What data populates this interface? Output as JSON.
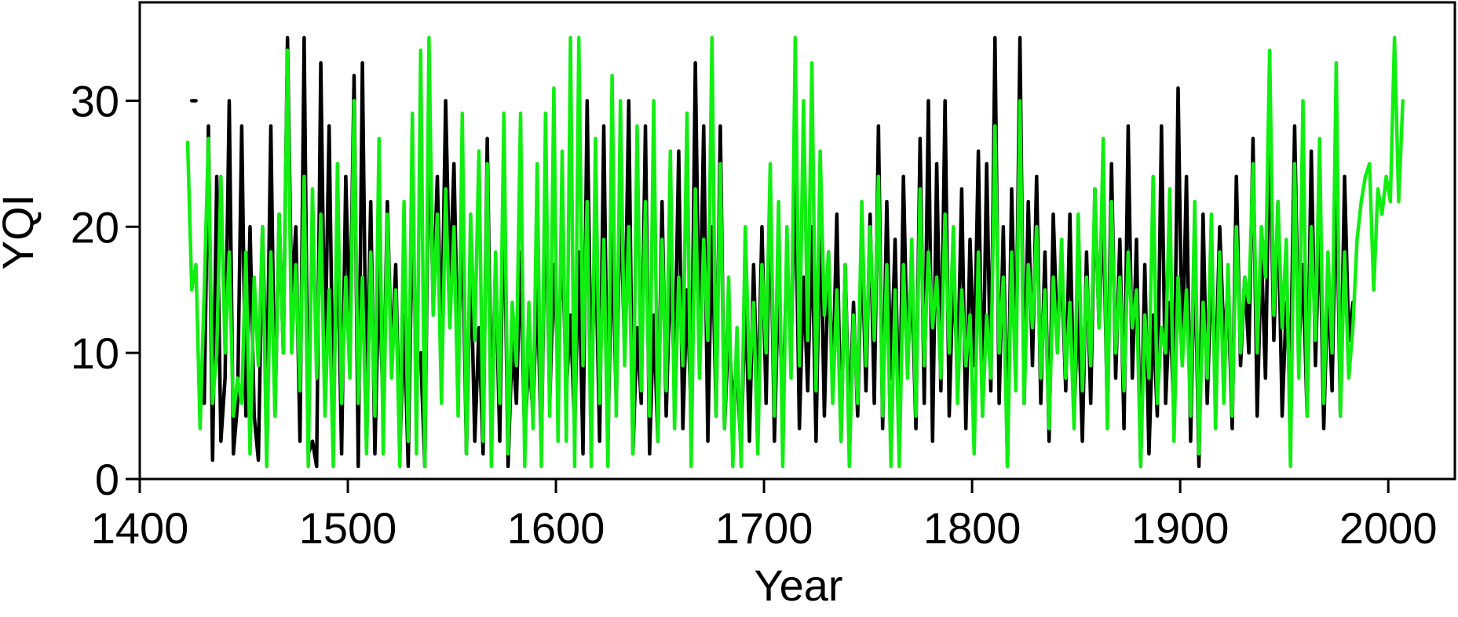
{
  "chart_data": {
    "type": "line",
    "x_label": "Year",
    "y_label": "YQI",
    "xlim": [
      1400,
      2032
    ],
    "xticks": [
      1400,
      1500,
      1600,
      1700,
      1800,
      1900,
      2000
    ],
    "ylim": [
      0,
      37.8
    ],
    "yticks": [
      0,
      10,
      20,
      30
    ],
    "x": [
      1423,
      1425,
      1427,
      1429,
      1431,
      1433,
      1435,
      1437,
      1439,
      1441,
      1443,
      1445,
      1447,
      1449,
      1451,
      1453,
      1455,
      1457,
      1459,
      1461,
      1463,
      1465,
      1467,
      1469,
      1471,
      1473,
      1475,
      1477,
      1479,
      1481,
      1483,
      1485,
      1487,
      1489,
      1491,
      1493,
      1495,
      1497,
      1499,
      1501,
      1503,
      1505,
      1507,
      1509,
      1511,
      1513,
      1515,
      1517,
      1519,
      1521,
      1523,
      1525,
      1527,
      1529,
      1531,
      1533,
      1535,
      1537,
      1539,
      1541,
      1543,
      1545,
      1547,
      1549,
      1551,
      1553,
      1555,
      1557,
      1559,
      1561,
      1563,
      1565,
      1567,
      1569,
      1571,
      1573,
      1575,
      1577,
      1579,
      1581,
      1583,
      1585,
      1587,
      1589,
      1591,
      1593,
      1595,
      1597,
      1599,
      1601,
      1603,
      1605,
      1607,
      1609,
      1611,
      1613,
      1615,
      1617,
      1619,
      1621,
      1623,
      1625,
      1627,
      1629,
      1631,
      1633,
      1635,
      1637,
      1639,
      1641,
      1643,
      1645,
      1647,
      1649,
      1651,
      1653,
      1655,
      1657,
      1659,
      1661,
      1663,
      1665,
      1667,
      1669,
      1671,
      1673,
      1675,
      1677,
      1679,
      1681,
      1683,
      1685,
      1687,
      1689,
      1691,
      1693,
      1695,
      1697,
      1699,
      1701,
      1703,
      1705,
      1707,
      1709,
      1711,
      1713,
      1715,
      1717,
      1719,
      1721,
      1723,
      1725,
      1727,
      1729,
      1731,
      1733,
      1735,
      1737,
      1739,
      1741,
      1743,
      1745,
      1747,
      1749,
      1751,
      1753,
      1755,
      1757,
      1759,
      1761,
      1763,
      1765,
      1767,
      1769,
      1771,
      1773,
      1775,
      1777,
      1779,
      1781,
      1783,
      1785,
      1787,
      1789,
      1791,
      1793,
      1795,
      1797,
      1799,
      1801,
      1803,
      1805,
      1807,
      1809,
      1811,
      1813,
      1815,
      1817,
      1819,
      1821,
      1823,
      1825,
      1827,
      1829,
      1831,
      1833,
      1835,
      1837,
      1839,
      1841,
      1843,
      1845,
      1847,
      1849,
      1851,
      1853,
      1855,
      1857,
      1859,
      1861,
      1863,
      1865,
      1867,
      1869,
      1871,
      1873,
      1875,
      1877,
      1879,
      1881,
      1883,
      1885,
      1887,
      1889,
      1891,
      1893,
      1895,
      1897,
      1899,
      1901,
      1903,
      1905,
      1907,
      1909,
      1911,
      1913,
      1915,
      1917,
      1919,
      1921,
      1923,
      1925,
      1927,
      1929,
      1931,
      1933,
      1935,
      1937,
      1939,
      1941,
      1943,
      1945,
      1947,
      1949,
      1951,
      1953,
      1955,
      1957,
      1959,
      1961,
      1963,
      1965,
      1967,
      1969,
      1971,
      1973,
      1975,
      1977,
      1979,
      1981,
      1983,
      1985,
      1987,
      1989,
      1991,
      1993,
      1995,
      1997,
      1999,
      2001,
      2003,
      2005,
      2007
    ],
    "series": [
      {
        "color": "#000000",
        "values": [
          null,
          30,
          30,
          null,
          6,
          28,
          1.5,
          24,
          3,
          8,
          30,
          2,
          6,
          28,
          5,
          20,
          5,
          1.5,
          20,
          6,
          28,
          5,
          21,
          10,
          35,
          14,
          20,
          3,
          35,
          2,
          3,
          1,
          33,
          9,
          28,
          5,
          20,
          2,
          24,
          11,
          32,
          1,
          33,
          5,
          22,
          2,
          17,
          5,
          22,
          9,
          17,
          2,
          13,
          1,
          21,
          9,
          10,
          1,
          29,
          14,
          24,
          10,
          30,
          15,
          25,
          9,
          21,
          2,
          18,
          3,
          12,
          2,
          27,
          5,
          17,
          3,
          24,
          1,
          11,
          6,
          18,
          3,
          10,
          5,
          16,
          2,
          24,
          6,
          17,
          9,
          19,
          7,
          13,
          4,
          18,
          2,
          30,
          7,
          19,
          3,
          28,
          3,
          20,
          6,
          23,
          10,
          30,
          2,
          12,
          6,
          28,
          2,
          13,
          3,
          22,
          5,
          17,
          8,
          26,
          4,
          15,
          5,
          33,
          10,
          28,
          3,
          20,
          5,
          28,
          4,
          12,
          6,
          9,
          2,
          15,
          3,
          17,
          5,
          20,
          6,
          23,
          3,
          16,
          5,
          18,
          10,
          25,
          4,
          16,
          7,
          20,
          3,
          22,
          5,
          18,
          7,
          21,
          3,
          17,
          4,
          14,
          5,
          19,
          7,
          21,
          6,
          28,
          4,
          22,
          8,
          19,
          3,
          24,
          9,
          16,
          4,
          27,
          6,
          30,
          3,
          25,
          7,
          30,
          5,
          17,
          8,
          23,
          4,
          19,
          9,
          26,
          5,
          25,
          7,
          35,
          6,
          20,
          1,
          23,
          8,
          35,
          6,
          22,
          9,
          24,
          6,
          18,
          3,
          21,
          11,
          17,
          7,
          21,
          5,
          14,
          3,
          18,
          6,
          23,
          12,
          22,
          5,
          25,
          8,
          19,
          4,
          28,
          8,
          19,
          1,
          17,
          2,
          13,
          5,
          28,
          6,
          14,
          5,
          31,
          9,
          24,
          3,
          19,
          1,
          21,
          6,
          17,
          8,
          20,
          11,
          15,
          4,
          24,
          9,
          16,
          10,
          27,
          5,
          18,
          8,
          29,
          11,
          22,
          5,
          14,
          8,
          28,
          10,
          17,
          5,
          26,
          9,
          21,
          4,
          16,
          7,
          25,
          5,
          24,
          11,
          14,
          null,
          null,
          null,
          null,
          null,
          null,
          null,
          null,
          null,
          null,
          null,
          null
        ]
      },
      {
        "color": "#11ee11",
        "values": [
          26.7,
          15,
          17,
          4,
          15,
          27,
          6,
          10,
          24,
          10,
          18,
          5,
          8,
          6,
          18,
          2,
          16,
          9,
          20,
          1,
          18,
          5,
          21,
          10,
          34,
          10,
          17,
          7,
          24,
          1,
          23,
          8,
          21,
          5,
          15,
          1,
          25,
          6,
          16,
          8,
          30,
          6,
          16,
          2,
          18,
          5,
          27,
          2,
          21,
          8,
          15,
          1,
          22,
          3,
          29,
          2,
          34,
          1,
          35,
          13,
          21,
          6,
          23,
          12,
          20,
          5,
          29,
          2,
          21,
          11,
          26,
          3,
          25,
          1,
          18,
          6,
          29,
          2,
          14,
          9,
          29,
          1,
          14,
          4,
          25,
          1,
          29,
          5,
          31,
          3,
          26,
          3,
          35,
          1,
          35,
          9,
          22,
          1,
          27,
          6,
          19,
          1,
          32,
          5,
          30,
          9,
          20,
          2,
          28,
          7,
          22,
          5,
          30,
          3,
          19,
          7,
          26,
          4,
          16,
          9,
          29,
          1,
          23,
          8,
          19,
          11,
          35,
          5,
          25,
          4,
          16,
          1,
          12,
          1,
          20,
          8,
          14,
          2,
          17,
          10,
          25,
          5,
          22,
          1,
          20,
          8,
          35,
          9,
          30,
          11,
          33,
          7,
          26,
          13,
          18,
          6,
          15,
          3,
          17,
          1,
          13,
          6,
          22,
          9,
          20,
          11,
          24,
          5,
          17,
          1,
          15,
          1,
          17,
          8,
          19,
          5,
          23,
          9,
          18,
          12,
          16,
          8,
          21,
          10,
          20,
          6,
          15,
          9,
          13,
          2,
          18,
          5,
          13,
          8,
          28,
          10,
          16,
          1,
          18,
          7,
          30,
          6,
          17,
          12,
          20,
          8,
          15,
          4,
          16,
          10,
          19,
          8,
          14,
          4,
          21,
          7,
          16,
          9,
          23,
          12,
          27,
          4,
          22,
          10,
          16,
          7,
          18,
          12,
          15,
          1,
          13,
          8,
          24,
          6,
          12,
          10,
          23,
          3,
          16,
          9,
          15,
          5,
          22,
          2,
          14,
          8,
          21,
          4,
          18,
          6,
          17,
          5,
          20,
          10,
          16,
          14,
          25,
          10,
          20,
          16,
          34,
          13,
          22,
          12,
          19,
          1,
          25,
          8,
          30,
          5,
          20,
          11,
          27,
          6,
          18,
          10,
          33,
          5,
          18,
          8,
          12,
          19,
          22,
          24,
          25,
          15,
          23,
          21,
          24,
          22,
          35,
          22,
          30
        ]
      }
    ]
  }
}
